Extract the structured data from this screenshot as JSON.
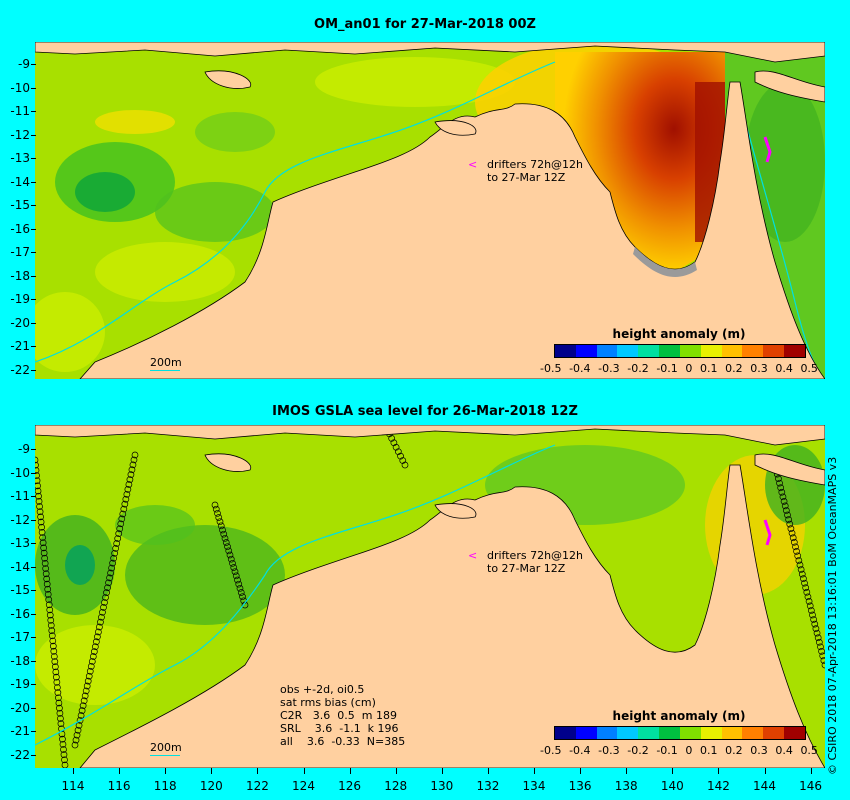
{
  "top_panel": {
    "title": "OM_an01 for 27-Mar-2018 00Z",
    "drifter_note_line1": "drifters 72h@12h",
    "drifter_note_line2": "to 27-Mar 12Z",
    "scale_label": "200m",
    "colorbar": {
      "title": "height anomaly (m)",
      "ticks": [
        "-0.5",
        "-0.4",
        "-0.3",
        "-0.2",
        "-0.1",
        "0",
        "0.1",
        "0.2",
        "0.3",
        "0.4",
        "0.5"
      ]
    }
  },
  "bottom_panel": {
    "title": "IMOS GSLA sea level  for 26-Mar-2018 12Z",
    "drifter_note_line1": "drifters 72h@12h",
    "drifter_note_line2": "to 27-Mar 12Z",
    "scale_label": "200m",
    "stats": {
      "line1": "obs +-2d, oi0.5",
      "line2": "sat rms bias (cm)",
      "rows": [
        "C2R   3.6  0.5  m 189",
        "SRL    3.6  -1.1  k 196",
        "all    3.6  -0.33  N=385"
      ]
    },
    "colorbar": {
      "title": "height anomaly (m)",
      "ticks": [
        "-0.5",
        "-0.4",
        "-0.3",
        "-0.2",
        "-0.1",
        "0",
        "0.1",
        "0.2",
        "0.3",
        "0.4",
        "0.5"
      ]
    }
  },
  "y_axis_labels": [
    "-9",
    "-10",
    "-11",
    "-12",
    "-13",
    "-14",
    "-15",
    "-16",
    "-17",
    "-18",
    "-19",
    "-20",
    "-21",
    "-22"
  ],
  "x_axis_labels": [
    "114",
    "116",
    "118",
    "120",
    "122",
    "124",
    "126",
    "128",
    "130",
    "132",
    "134",
    "136",
    "138",
    "140",
    "142",
    "144",
    "146"
  ],
  "credit": "© CSIRO 2018  07-Apr-2018 13:16:01 BoM OceanMAPS v3",
  "colors": {
    "background": "#00ffff",
    "land": "#ffd0a0",
    "ocean_neutral": "#a8e000",
    "positive": "#d84000",
    "negative": "#00a040"
  },
  "colorbar_colors": [
    "#00008b",
    "#0000ff",
    "#0080ff",
    "#00c8ff",
    "#00e0a0",
    "#00c040",
    "#80e000",
    "#e8f000",
    "#ffc000",
    "#ff8000",
    "#e04000",
    "#a00000"
  ]
}
